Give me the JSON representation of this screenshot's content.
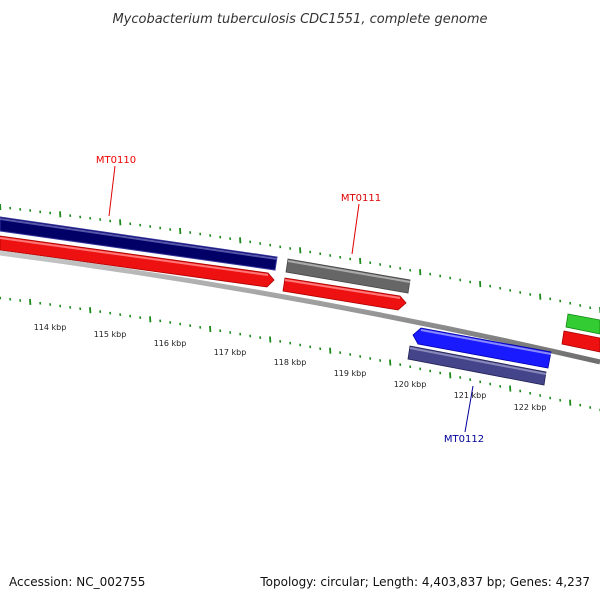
{
  "title": "Mycobacterium tuberculosis CDC1551, complete genome",
  "footer": {
    "accession": "Accession: NC_002755",
    "summary": "Topology: circular; Length: 4,403,837 bp; Genes: 4,237"
  },
  "genes": [
    {
      "id": "MT0110",
      "color": "#ee0000"
    },
    {
      "id": "MT0111",
      "color": "#dd0000"
    },
    {
      "id": "MT0112",
      "color": "#000099"
    }
  ],
  "ruler": {
    "labels": [
      "114 kbp",
      "115 kbp",
      "116 kbp",
      "117 kbp",
      "118 kbp",
      "119 kbp",
      "120 kbp",
      "121 kbp",
      "122 kbp"
    ]
  },
  "colors": {
    "tick_green": "#1a8a1a",
    "backbone": "#808080",
    "forward_gene": "#000066",
    "forward_cds": "#ee1111",
    "neutral_gene": "#666666",
    "reverse_cds": "#1a1aff",
    "reverse_gene": "#44448a",
    "other_gene": "#33cc33"
  }
}
